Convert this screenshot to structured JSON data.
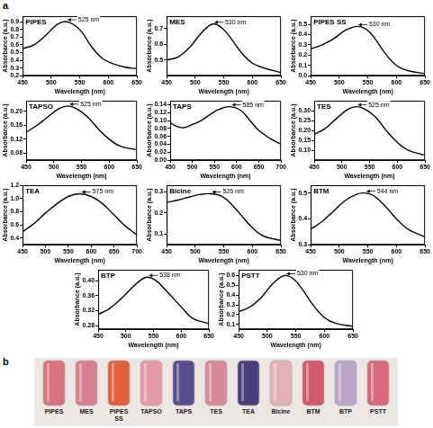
{
  "panel_letters": [
    "a",
    "b"
  ],
  "chart_data": [
    {
      "type": "line",
      "title": "PIPES",
      "x_label": "Wavelength (nm)",
      "y_label": "Absorbance (a.u.)",
      "color": "#000000",
      "grid": false,
      "x": [
        450,
        470,
        490,
        505,
        515,
        525,
        540,
        555,
        570,
        590,
        610,
        630,
        650
      ],
      "values": [
        0.55,
        0.6,
        0.72,
        0.83,
        0.88,
        0.9,
        0.86,
        0.75,
        0.58,
        0.42,
        0.35,
        0.31,
        0.29
      ],
      "xlim": [
        450,
        650
      ],
      "xticks": [
        450,
        500,
        550,
        600,
        650
      ],
      "ylim": [
        0.2,
        0.97
      ],
      "yticks": [
        0.2,
        0.3,
        0.4,
        0.5,
        0.6,
        0.7,
        0.8,
        0.9
      ],
      "annotations": [
        {
          "text": "525 nm",
          "x": 525,
          "y": 0.9
        }
      ]
    },
    {
      "type": "line",
      "title": "MES",
      "x_label": "Wavelength (nm)",
      "y_label": "Absorbance (a.u.)",
      "color": "#000000",
      "grid": false,
      "x": [
        450,
        470,
        490,
        510,
        530,
        545,
        560,
        580,
        600,
        620,
        650
      ],
      "values": [
        0.5,
        0.52,
        0.58,
        0.67,
        0.73,
        0.71,
        0.65,
        0.55,
        0.48,
        0.45,
        0.42
      ],
      "xlim": [
        450,
        650
      ],
      "xticks": [
        450,
        500,
        550,
        600,
        650
      ],
      "ylim": [
        0.4,
        0.78
      ],
      "yticks": [
        0.5,
        0.6,
        0.7
      ],
      "annotations": [
        {
          "text": "530 nm",
          "x": 530,
          "y": 0.73
        }
      ]
    },
    {
      "type": "line",
      "title": "PIPES SS",
      "x_label": "Wavelength (nm)",
      "y_label": "Absorbance (a.u.)",
      "color": "#000000",
      "grid": false,
      "x": [
        450,
        470,
        490,
        510,
        530,
        545,
        560,
        580,
        600,
        620,
        650
      ],
      "values": [
        0.26,
        0.3,
        0.36,
        0.44,
        0.48,
        0.46,
        0.38,
        0.22,
        0.1,
        0.05,
        0.02
      ],
      "xlim": [
        450,
        650
      ],
      "xticks": [
        450,
        500,
        550,
        600,
        650
      ],
      "ylim": [
        0,
        0.58
      ],
      "yticks": [
        {
          "value": 0,
          "label": "0.0"
        },
        0.1,
        0.2,
        0.3,
        0.4,
        0.5
      ],
      "annotations": [
        {
          "text": "530 nm",
          "x": 530,
          "y": 0.48
        }
      ]
    },
    {
      "type": "line",
      "title": "TAPSO",
      "x_label": "Wavelength (nm)",
      "y_label": "Absorbance (a.u.)",
      "color": "#000000",
      "grid": false,
      "x": [
        450,
        470,
        490,
        510,
        525,
        540,
        560,
        580,
        600,
        620,
        650
      ],
      "values": [
        0.14,
        0.16,
        0.185,
        0.208,
        0.215,
        0.208,
        0.185,
        0.15,
        0.12,
        0.1,
        0.09
      ],
      "xlim": [
        450,
        650
      ],
      "xticks": [
        450,
        500,
        550,
        600,
        650
      ],
      "ylim": [
        0.06,
        0.23
      ],
      "yticks": [
        0.08,
        0.12,
        0.16,
        {
          "value": 0.2,
          "label": "0.20"
        }
      ],
      "annotations": [
        {
          "text": "525 nm",
          "x": 525,
          "y": 0.215
        }
      ]
    },
    {
      "type": "line",
      "title": "TAPS",
      "x_label": "Wavelength (nm)",
      "y_label": "Absorbance (a.u.)",
      "color": "#000000",
      "grid": false,
      "x": [
        450,
        465,
        480,
        500,
        520,
        540,
        560,
        585,
        610,
        630,
        650,
        675,
        700
      ],
      "values": [
        0.095,
        0.085,
        0.082,
        0.09,
        0.1,
        0.115,
        0.128,
        0.135,
        0.125,
        0.1,
        0.075,
        0.055,
        0.04
      ],
      "xlim": [
        450,
        700
      ],
      "xticks": [
        450,
        500,
        550,
        600,
        650,
        700
      ],
      "ylim": [
        0,
        0.15
      ],
      "yticks": [
        {
          "value": 0,
          "label": "0.00"
        },
        0.02,
        0.04,
        0.06,
        0.08,
        {
          "value": 0.1,
          "label": "0.10"
        },
        0.12,
        0.14
      ],
      "annotations": [
        {
          "text": "585 nm",
          "x": 585,
          "y": 0.135
        }
      ]
    },
    {
      "type": "line",
      "title": "TES",
      "x_label": "Wavelength (nm)",
      "y_label": "Absorbance (a.u.)",
      "color": "#000000",
      "grid": false,
      "x": [
        450,
        470,
        490,
        510,
        525,
        540,
        560,
        580,
        600,
        620,
        650
      ],
      "values": [
        0.18,
        0.21,
        0.26,
        0.305,
        0.32,
        0.31,
        0.27,
        0.2,
        0.14,
        0.1,
        0.075
      ],
      "xlim": [
        450,
        650
      ],
      "xticks": [
        450,
        500,
        550,
        600,
        650
      ],
      "ylim": [
        0.05,
        0.35
      ],
      "yticks": [
        {
          "value": 0.1,
          "label": "0.10"
        },
        0.15,
        {
          "value": 0.2,
          "label": "0.20"
        },
        0.25,
        {
          "value": 0.3,
          "label": "0.30"
        }
      ],
      "annotations": [
        {
          "text": "525 nm",
          "x": 525,
          "y": 0.32
        }
      ]
    },
    {
      "type": "line",
      "title": "TEA",
      "x_label": "Wavelength (nm)",
      "y_label": "Absorbance (a.u.)",
      "color": "#000000",
      "grid": false,
      "x": [
        450,
        475,
        500,
        525,
        550,
        575,
        600,
        625,
        650,
        675,
        700
      ],
      "values": [
        0.5,
        0.62,
        0.78,
        0.92,
        1.03,
        1.07,
        1.03,
        0.92,
        0.75,
        0.58,
        0.45
      ],
      "xlim": [
        450,
        700
      ],
      "xticks": [
        450,
        500,
        550,
        600,
        650,
        700
      ],
      "ylim": [
        0.3,
        1.2
      ],
      "yticks": [
        0.4,
        0.6,
        0.8,
        {
          "value": 1,
          "label": "1.0"
        },
        1.2
      ],
      "annotations": [
        {
          "text": "575 nm",
          "x": 575,
          "y": 1.07
        }
      ]
    },
    {
      "type": "line",
      "title": "Bicine",
      "x_label": "Wavelength (nm)",
      "y_label": "Absorbance (a.u.)",
      "color": "#000000",
      "grid": false,
      "x": [
        450,
        470,
        490,
        510,
        526,
        545,
        560,
        580,
        600,
        620,
        650
      ],
      "values": [
        0.25,
        0.26,
        0.275,
        0.287,
        0.29,
        0.28,
        0.25,
        0.19,
        0.13,
        0.09,
        0.07
      ],
      "xlim": [
        450,
        650
      ],
      "xticks": [
        450,
        500,
        550,
        600,
        650
      ],
      "ylim": [
        0.05,
        0.33
      ],
      "yticks": [
        0.1,
        0.2,
        0.3
      ],
      "annotations": [
        {
          "text": "526 nm",
          "x": 526,
          "y": 0.29
        }
      ]
    },
    {
      "type": "line",
      "title": "BTM",
      "x_label": "Wavelength (nm)",
      "y_label": "Absorbance (a.u.)",
      "color": "#000000",
      "grid": false,
      "x": [
        450,
        470,
        490,
        510,
        530,
        544,
        560,
        580,
        600,
        620,
        650
      ],
      "values": [
        0.36,
        0.39,
        0.43,
        0.47,
        0.495,
        0.5,
        0.49,
        0.45,
        0.4,
        0.36,
        0.33
      ],
      "xlim": [
        450,
        650
      ],
      "xticks": [
        450,
        500,
        550,
        600,
        650
      ],
      "ylim": [
        0.3,
        0.53
      ],
      "yticks": [
        0.3,
        0.4,
        0.5
      ],
      "annotations": [
        {
          "text": "544 nm",
          "x": 544,
          "y": 0.5
        }
      ]
    },
    {
      "type": "line",
      "title": "BTP",
      "x_label": "Wavelength (nm)",
      "y_label": "Absorbance (a.u.)",
      "color": "#000000",
      "grid": false,
      "x": [
        450,
        470,
        490,
        510,
        525,
        538,
        555,
        575,
        600,
        620,
        650
      ],
      "values": [
        0.31,
        0.325,
        0.35,
        0.38,
        0.4,
        0.41,
        0.4,
        0.37,
        0.33,
        0.3,
        0.285
      ],
      "xlim": [
        450,
        650
      ],
      "xticks": [
        450,
        500,
        550,
        600,
        650
      ],
      "ylim": [
        0.27,
        0.43
      ],
      "yticks": [
        0.28,
        0.32,
        0.36,
        {
          "value": 0.4,
          "label": "0.40"
        }
      ],
      "annotations": [
        {
          "text": "538 nm",
          "x": 538,
          "y": 0.41
        }
      ]
    },
    {
      "type": "line",
      "title": "PSTT",
      "x_label": "Wavelength (nm)",
      "y_label": "Absorbance (a.u.)",
      "color": "#000000",
      "grid": false,
      "x": [
        450,
        470,
        490,
        510,
        530,
        545,
        560,
        580,
        600,
        620,
        650
      ],
      "values": [
        0.23,
        0.28,
        0.38,
        0.52,
        0.6,
        0.57,
        0.47,
        0.3,
        0.17,
        0.11,
        0.08
      ],
      "xlim": [
        450,
        650
      ],
      "xticks": [
        450,
        500,
        550,
        600,
        650
      ],
      "ylim": [
        0.05,
        0.66
      ],
      "yticks": [
        0.1,
        0.2,
        0.3,
        0.4,
        0.5,
        0.6
      ],
      "annotations": [
        {
          "text": "530 nm",
          "x": 530,
          "y": 0.6
        }
      ]
    }
  ],
  "photo": {
    "tubes": [
      {
        "label": "PIPES",
        "color": "#d9737f"
      },
      {
        "label": "MES",
        "color": "#d98090"
      },
      {
        "label": "PIPES SS",
        "color": "#e0603a"
      },
      {
        "label": "TAPSO",
        "color": "#e29aa8"
      },
      {
        "label": "TAPS",
        "color": "#5a4f8a"
      },
      {
        "label": "TES",
        "color": "#d88a9a"
      },
      {
        "label": "TEA",
        "color": "#4a3f7a"
      },
      {
        "label": "Bicine",
        "color": "#e4b0b8"
      },
      {
        "label": "BTM",
        "color": "#d25a6a"
      },
      {
        "label": "BTP",
        "color": "#b9a6c8"
      },
      {
        "label": "PSTT",
        "color": "#d46a7a"
      }
    ]
  }
}
